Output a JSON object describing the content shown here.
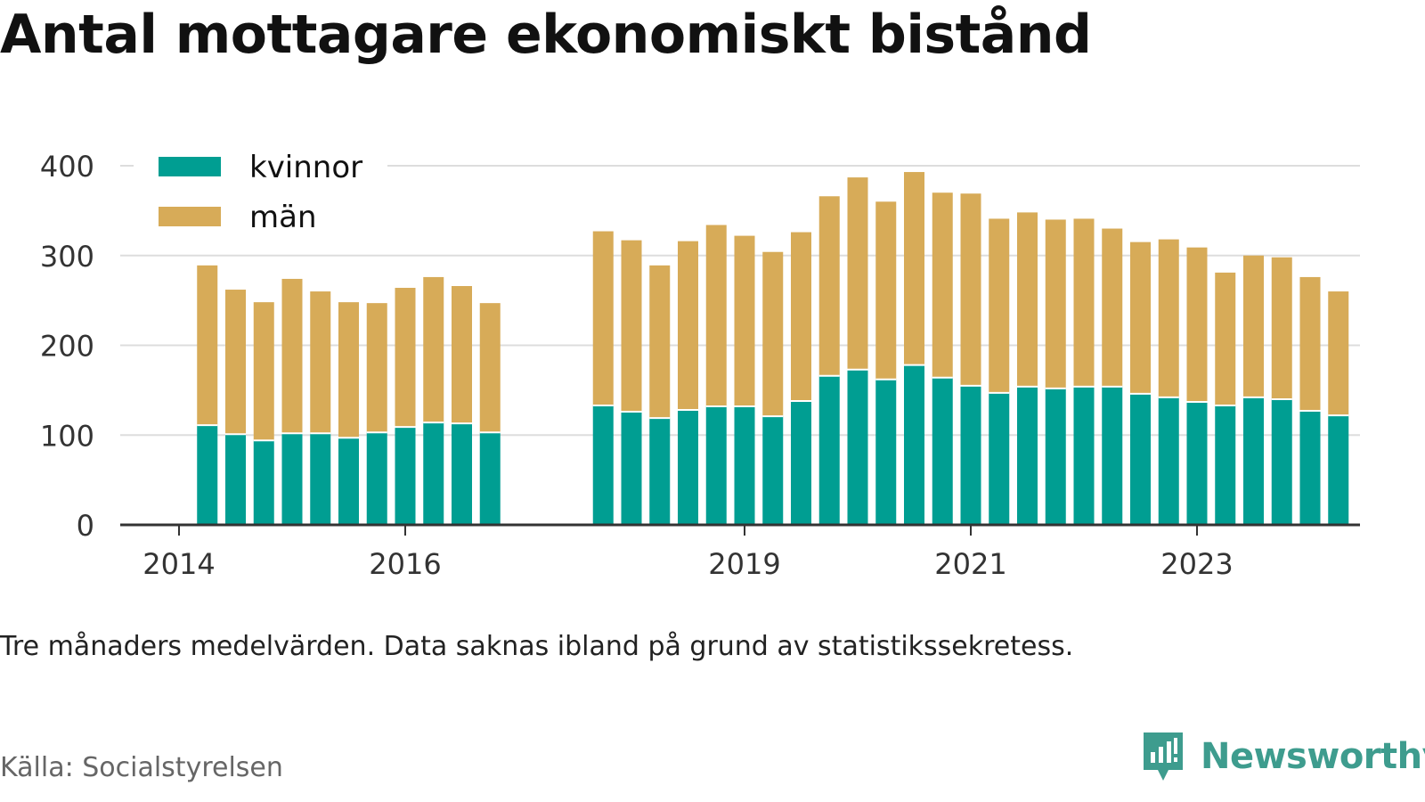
{
  "title": "Antal mottagare ekonomiskt bistånd",
  "subtitle": "Tre månaders medelvärden. Data saknas ibland på grund av statistikssekretess.",
  "source": "Källa: Socialstyrelsen",
  "brand": {
    "name": "Newsworthy",
    "icon": "newsworthy-logo-icon",
    "color": "#3e9c8e"
  },
  "chart_data": {
    "type": "bar",
    "stacked": true,
    "title": "Antal mottagare ekonomiskt bistånd",
    "xlabel": "",
    "ylabel": "",
    "ylim": [
      0,
      400
    ],
    "yticks": [
      0,
      100,
      200,
      300,
      400
    ],
    "xticks": [
      "2014",
      "2016",
      "2019",
      "2021",
      "2023"
    ],
    "grid": true,
    "legend_position": "top-left",
    "colors": {
      "kvinnor": "#009e92",
      "män": "#d7ab58"
    },
    "categories": [
      "2014-04",
      "2014-07",
      "2014-10",
      "2015-01",
      "2015-04",
      "2015-07",
      "2015-10",
      "2016-01",
      "2016-04",
      "2016-07",
      "2016-10",
      "2017-10",
      "2018-01",
      "2018-04",
      "2018-07",
      "2018-10",
      "2019-01",
      "2019-04",
      "2019-07",
      "2019-10",
      "2020-01",
      "2020-04",
      "2020-07",
      "2020-10",
      "2021-01",
      "2021-04",
      "2021-07",
      "2021-10",
      "2022-01",
      "2022-04",
      "2022-07",
      "2022-10",
      "2023-01",
      "2023-04",
      "2023-07",
      "2023-10",
      "2024-01",
      "2024-04"
    ],
    "series": [
      {
        "name": "kvinnor",
        "color": "#009e92",
        "values": [
          111,
          101,
          94,
          102,
          102,
          97,
          103,
          109,
          114,
          113,
          103,
          133,
          126,
          119,
          128,
          132,
          132,
          121,
          138,
          166,
          173,
          162,
          178,
          164,
          155,
          147,
          154,
          152,
          154,
          154,
          146,
          142,
          137,
          133,
          142,
          140,
          127,
          122
        ]
      },
      {
        "name": "män",
        "color": "#d7ab58",
        "values": [
          178,
          161,
          154,
          172,
          158,
          151,
          144,
          155,
          162,
          153,
          144,
          194,
          191,
          170,
          188,
          202,
          190,
          183,
          188,
          200,
          214,
          198,
          215,
          206,
          214,
          194,
          194,
          188,
          187,
          176,
          169,
          176,
          172,
          148,
          158,
          158,
          149,
          138
        ]
      }
    ]
  }
}
